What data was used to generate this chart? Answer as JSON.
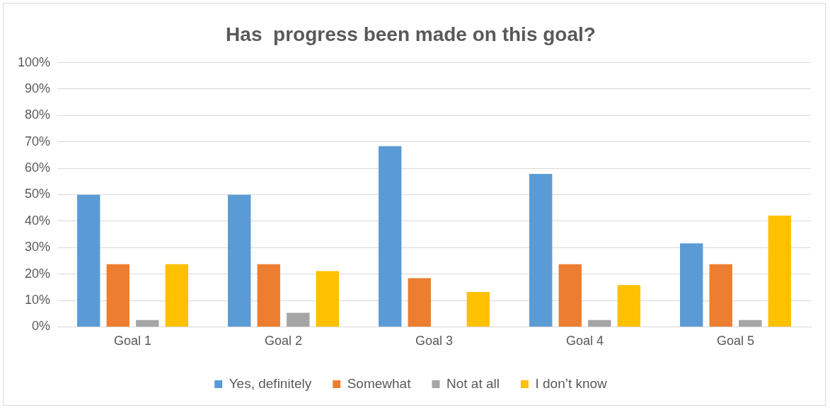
{
  "chart_data": {
    "type": "bar",
    "title": "Has  progress been made on this goal?",
    "categories": [
      "Goal 1",
      "Goal 2",
      "Goal 3",
      "Goal 4",
      "Goal 5"
    ],
    "series": [
      {
        "name": "Yes, definitely",
        "color": "#5b9bd5",
        "values": [
          50,
          50,
          68.4,
          57.9,
          31.6
        ]
      },
      {
        "name": "Somewhat",
        "color": "#ed7d31",
        "values": [
          23.7,
          23.7,
          18.4,
          23.7,
          23.7
        ]
      },
      {
        "name": "Not at all",
        "color": "#a5a5a5",
        "values": [
          2.6,
          5.3,
          0,
          2.6,
          2.6
        ]
      },
      {
        "name": "I don’t know",
        "color": "#ffc000",
        "values": [
          23.7,
          21.1,
          13.2,
          15.8,
          42.1
        ]
      }
    ],
    "ylim": [
      0,
      100
    ],
    "yticks": [
      {
        "value": 0,
        "label": "0%"
      },
      {
        "value": 10,
        "label": "10%"
      },
      {
        "value": 20,
        "label": "20%"
      },
      {
        "value": 30,
        "label": "30%"
      },
      {
        "value": 40,
        "label": "40%"
      },
      {
        "value": 50,
        "label": "50%"
      },
      {
        "value": 60,
        "label": "60%"
      },
      {
        "value": 70,
        "label": "70%"
      },
      {
        "value": 80,
        "label": "80%"
      },
      {
        "value": 90,
        "label": "90%"
      },
      {
        "value": 100,
        "label": "100%"
      }
    ],
    "grid": "y",
    "legend": "bottom"
  }
}
